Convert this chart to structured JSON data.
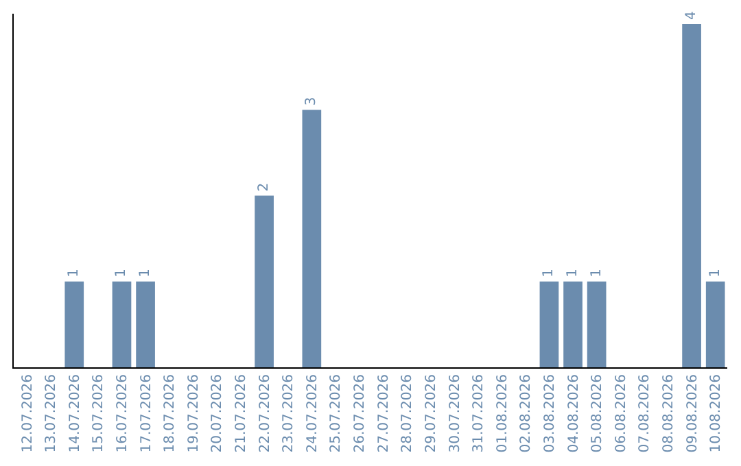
{
  "chart_data": {
    "type": "bar",
    "categories": [
      "12.07.2026",
      "13.07.2026",
      "14.07.2026",
      "15.07.2026",
      "16.07.2026",
      "17.07.2026",
      "18.07.2026",
      "19.07.2026",
      "20.07.2026",
      "21.07.2026",
      "22.07.2026",
      "23.07.2026",
      "24.07.2026",
      "25.07.2026",
      "26.07.2026",
      "27.07.2026",
      "28.07.2026",
      "29.07.2026",
      "30.07.2026",
      "31.07.2026",
      "01.08.2026",
      "02.08.2026",
      "03.08.2026",
      "04.08.2026",
      "05.08.2026",
      "06.08.2026",
      "07.08.2026",
      "08.08.2026",
      "09.08.2026",
      "10.08.2026"
    ],
    "values": [
      0,
      0,
      1,
      0,
      1,
      1,
      0,
      0,
      0,
      0,
      2,
      0,
      3,
      0,
      0,
      0,
      0,
      0,
      0,
      0,
      0,
      0,
      1,
      1,
      1,
      0,
      0,
      0,
      4,
      1
    ],
    "value_labels": [
      null,
      null,
      "1",
      null,
      "1",
      "1",
      null,
      null,
      null,
      null,
      "2",
      null,
      "3",
      null,
      null,
      null,
      null,
      null,
      null,
      null,
      null,
      null,
      "1",
      "1",
      "1",
      null,
      null,
      null,
      "4",
      "1"
    ],
    "color": "#6b8cae",
    "grid": false
  }
}
